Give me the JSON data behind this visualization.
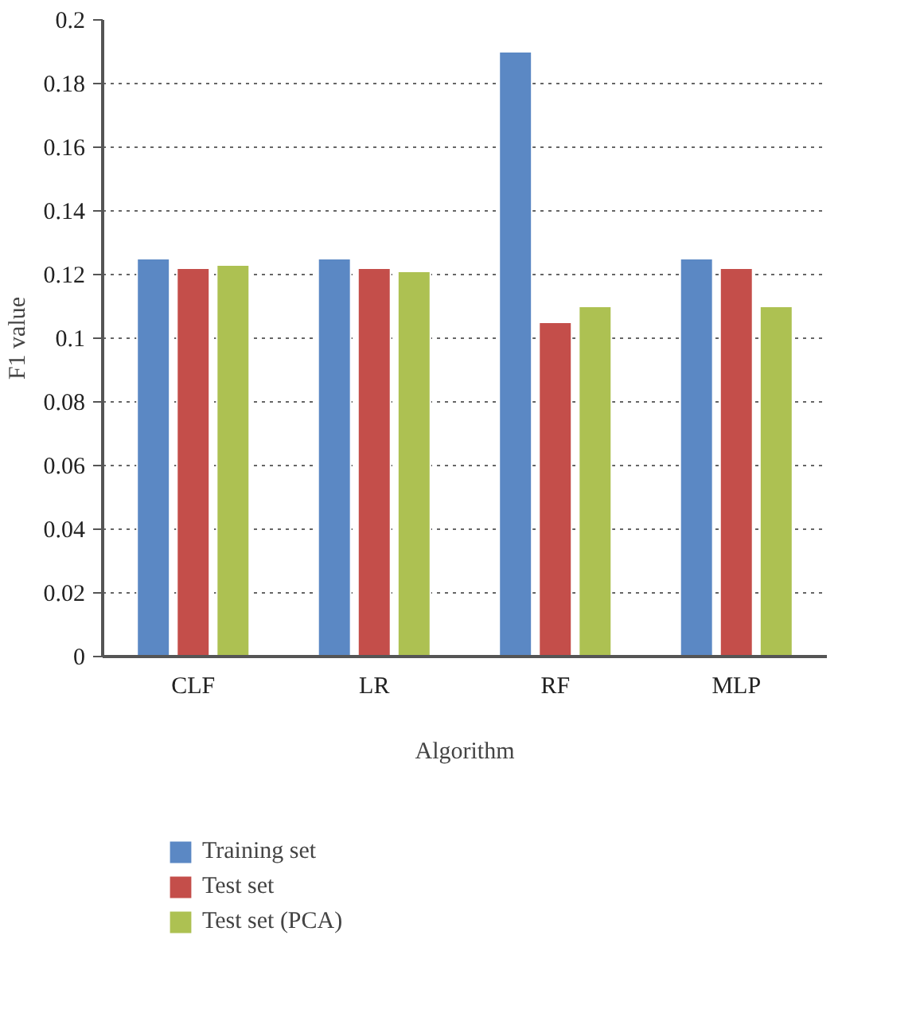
{
  "chart_data": {
    "type": "bar",
    "xlabel": "Algorithm",
    "ylabel": "F1 value",
    "categories": [
      "CLF",
      "LR",
      "RF",
      "MLP"
    ],
    "series": [
      {
        "name": "Training set",
        "color": "#5b88c4",
        "values": [
          0.125,
          0.125,
          0.19,
          0.125
        ]
      },
      {
        "name": "Test set",
        "color": "#c44e4a",
        "values": [
          0.122,
          0.122,
          0.105,
          0.122
        ]
      },
      {
        "name": "Test set (PCA)",
        "color": "#adc152",
        "values": [
          0.123,
          0.121,
          0.11,
          0.11
        ]
      }
    ],
    "ylim": [
      0,
      0.2
    ],
    "yticks": [
      0,
      0.02,
      0.04,
      0.06,
      0.08,
      0.1,
      0.12,
      0.14,
      0.16,
      0.18,
      0.2
    ],
    "grid": "y",
    "legend": "bottom"
  }
}
